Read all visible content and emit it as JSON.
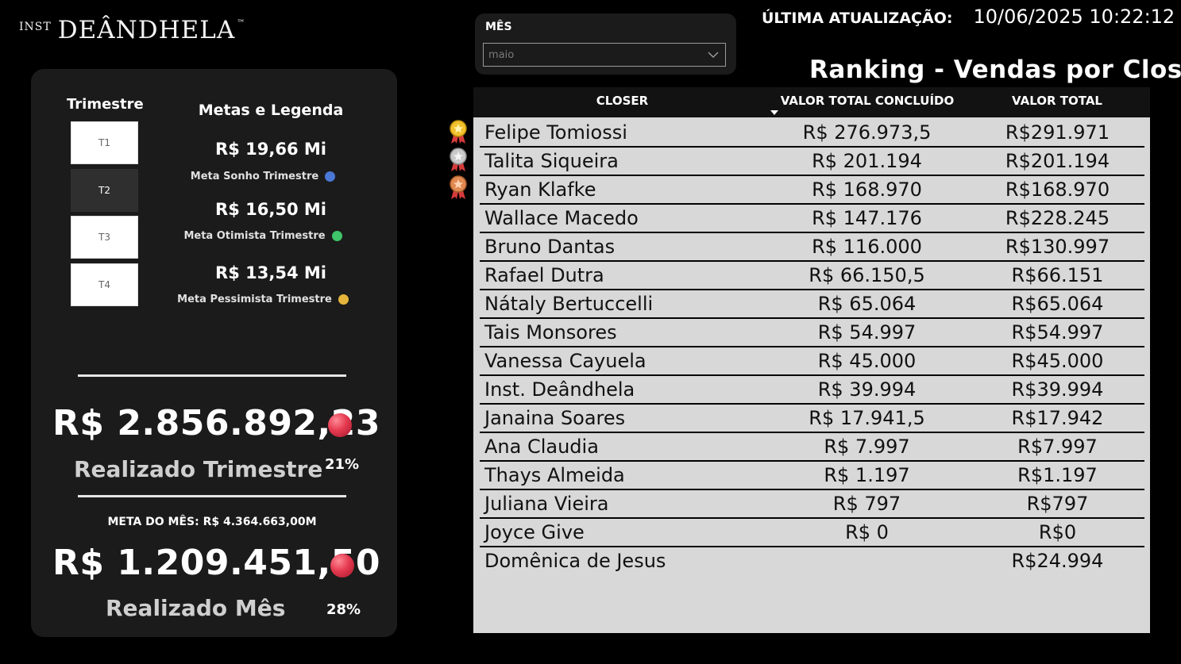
{
  "logo": {
    "prefix": "INST",
    "name": "DEÂNDHELA",
    "tm": "™"
  },
  "colors": {
    "meta_sonho": "#4a78d6",
    "meta_otimista": "#3fc46a",
    "meta_pessimista": "#e5b43a",
    "status": "#e53a50"
  },
  "trimestre": {
    "title": "Trimestre",
    "buttons": [
      "T1",
      "T2",
      "T3",
      "T4"
    ],
    "selected": "T2"
  },
  "metas": {
    "title": "Metas e Legenda",
    "items": [
      {
        "value": "R$ 19,66 Mi",
        "label": "Meta Sonho Trimestre"
      },
      {
        "value": "R$ 16,50 Mi",
        "label": "Meta Otimista Trimestre"
      },
      {
        "value": "R$ 13,54 Mi",
        "label": "Meta Pessimista Trimestre"
      }
    ]
  },
  "realizado_trimestre": {
    "value": "R$ 2.856.892,23",
    "label": "Realizado Trimestre",
    "percent": "21%"
  },
  "meta_mes": "META DO MÊS: R$ 4.364.663,00M",
  "realizado_mes": {
    "value": "R$ 1.209.451,50",
    "label": "Realizado Mês",
    "percent": "28%"
  },
  "filter": {
    "label": "MÊS",
    "value": "maio"
  },
  "update": {
    "label": "ÚLTIMA ATUALIZAÇÃO:",
    "value": "10/06/2025 10:22:12"
  },
  "ranking": {
    "title": "Ranking - Vendas por Closer",
    "columns": [
      "CLOSER",
      "VALOR TOTAL CONCLUÍDO",
      "VALOR TOTAL"
    ],
    "medals": [
      "gold-medal-icon",
      "silver-medal-icon",
      "bronze-medal-icon"
    ],
    "rows": [
      [
        "Felipe Tomiossi",
        "R$ 276.973,5",
        "R$291.971"
      ],
      [
        "Talita Siqueira",
        "R$ 201.194",
        "R$201.194"
      ],
      [
        "Ryan Klafke",
        "R$ 168.970",
        "R$168.970"
      ],
      [
        "Wallace Macedo",
        "R$ 147.176",
        "R$228.245"
      ],
      [
        "Bruno Dantas",
        "R$ 116.000",
        "R$130.997"
      ],
      [
        "Rafael Dutra",
        "R$ 66.150,5",
        "R$66.151"
      ],
      [
        "Nátaly Bertuccelli",
        "R$ 65.064",
        "R$65.064"
      ],
      [
        "Tais Monsores",
        "R$ 54.997",
        "R$54.997"
      ],
      [
        "Vanessa Cayuela",
        "R$ 45.000",
        "R$45.000"
      ],
      [
        "Inst. Deândhela",
        "R$ 39.994",
        "R$39.994"
      ],
      [
        "Janaina Soares",
        "R$ 17.941,5",
        "R$17.942"
      ],
      [
        "Ana Claudia",
        "R$ 7.997",
        "R$7.997"
      ],
      [
        "Thays Almeida",
        "R$ 1.197",
        "R$1.197"
      ],
      [
        "Juliana Vieira",
        "R$ 797",
        "R$797"
      ],
      [
        "Joyce Give",
        "R$ 0",
        "R$0"
      ],
      [
        "Domênica de Jesus",
        "",
        "R$24.994"
      ]
    ]
  }
}
